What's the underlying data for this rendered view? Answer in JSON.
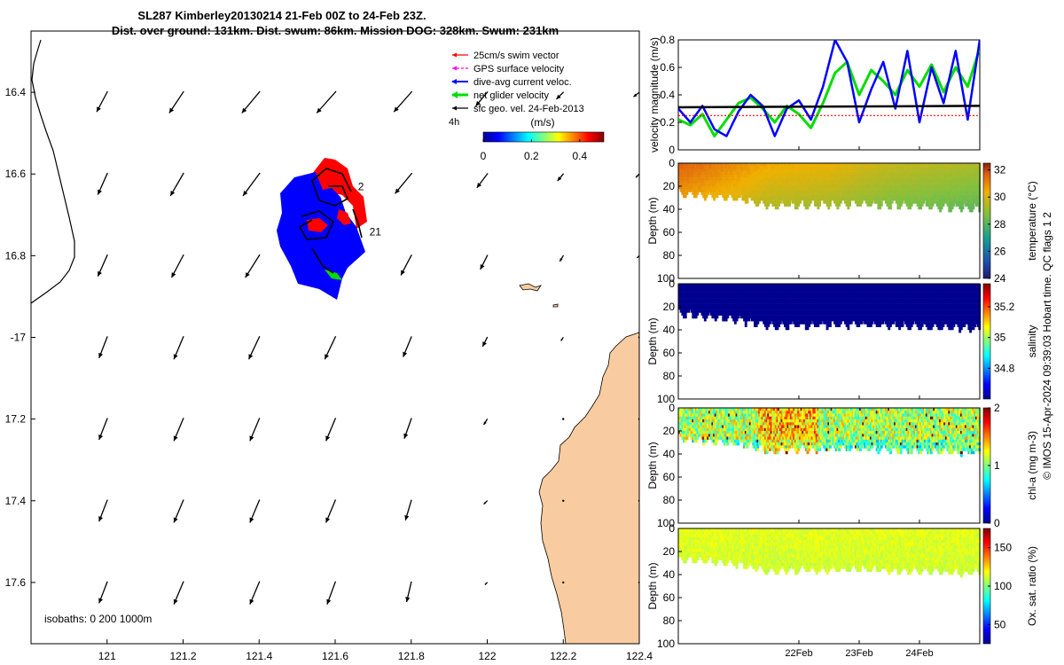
{
  "title": {
    "line1": "SL287 Kimberley20130214 21-Feb 00Z to 24-Feb 23Z.",
    "line2": "Dist. over ground: 131km. Dist. swum: 86km. Mission DOG: 328km. Swum: 231km"
  },
  "credit": "© IMOS 15-Apr-2024 09:39:03 Hobart time. QC flags 1  2",
  "colors": {
    "swim": "#ff0000",
    "gps": "#ff00ff",
    "dive": "#0000ff",
    "net": "#00dd00",
    "sfc": "#000000",
    "land": "#f8cca0",
    "track_red": "#ff0000",
    "track_blue": "#0000ff"
  },
  "chart_data": [
    {
      "type": "map",
      "name": "track-map",
      "xlim": [
        120.8,
        122.4
      ],
      "ylim": [
        -17.75,
        -16.25
      ],
      "xticks": [
        121,
        121.2,
        121.4,
        121.6,
        121.8,
        122,
        122.2,
        122.4
      ],
      "xtick_labels": [
        "121",
        "121.2",
        "121.4",
        "121.6",
        "121.8",
        "122",
        "122.2",
        "122.4"
      ],
      "yticks": [
        -16.4,
        -16.6,
        -16.8,
        -17.0,
        -17.2,
        -17.4,
        -17.6
      ],
      "ytick_labels": [
        "16.4",
        "16.6",
        "16.8",
        "-17",
        "17.2",
        "17.4",
        "17.6"
      ],
      "legend": {
        "placement": "top-right",
        "entries": [
          "25cm/s swim vector",
          "GPS surface velocity",
          "dive-avg current veloc.",
          "net glider velocity",
          "sfc geo. vel. 24-Feb-2013"
        ],
        "scale_label": "4h"
      },
      "colorbar": {
        "label": "(m/s)",
        "range": [
          0,
          0.5
        ],
        "ticks": [
          0,
          0.2,
          0.4
        ],
        "tick_labels": [
          "0",
          "0.2",
          "0.4"
        ]
      },
      "isobaths_label": "isobaths: 0   200  1000m",
      "annotations": [
        {
          "text": "2",
          "lon": 121.66,
          "lat": -16.64
        },
        {
          "text": "21",
          "lon": 121.69,
          "lat": -16.75
        }
      ],
      "vector_field": {
        "lons": [
          121.0,
          121.2,
          121.4,
          121.6,
          121.8,
          122.0,
          122.2,
          122.4
        ],
        "lats": [
          -16.4,
          -16.6,
          -16.8,
          -17.0,
          -17.2,
          -17.4,
          -17.6
        ],
        "u": [
          [
            -0.09,
            -0.12,
            -0.15,
            -0.16,
            -0.15,
            -0.1,
            -0.06,
            -0.05
          ],
          [
            -0.08,
            -0.11,
            -0.14,
            -0.15,
            -0.14,
            -0.09,
            -0.05,
            -0.03
          ],
          [
            -0.08,
            -0.1,
            -0.12,
            -0.13,
            -0.09,
            -0.06,
            -0.03,
            -0.02
          ],
          [
            -0.07,
            -0.08,
            -0.09,
            -0.09,
            -0.07,
            -0.04,
            -0.02,
            0
          ],
          [
            -0.07,
            -0.08,
            -0.08,
            -0.08,
            -0.06,
            -0.03,
            0,
            0
          ],
          [
            -0.07,
            -0.08,
            -0.08,
            -0.08,
            -0.05,
            -0.03,
            0,
            0
          ],
          [
            -0.07,
            -0.08,
            -0.08,
            -0.07,
            -0.04,
            -0.02,
            0,
            0
          ]
        ],
        "v": [
          [
            -0.17,
            -0.18,
            -0.18,
            -0.18,
            -0.17,
            -0.12,
            -0.06,
            -0.04
          ],
          [
            -0.18,
            -0.19,
            -0.19,
            -0.19,
            -0.17,
            -0.12,
            -0.06,
            -0.03
          ],
          [
            -0.18,
            -0.19,
            -0.19,
            -0.19,
            -0.17,
            -0.12,
            -0.05,
            -0.02
          ],
          [
            -0.18,
            -0.19,
            -0.19,
            -0.19,
            -0.17,
            -0.08,
            -0.03,
            0
          ],
          [
            -0.18,
            -0.19,
            -0.19,
            -0.19,
            -0.17,
            -0.05,
            0,
            0
          ],
          [
            -0.18,
            -0.19,
            -0.19,
            -0.19,
            -0.17,
            -0.03,
            0,
            0
          ],
          [
            -0.18,
            -0.19,
            -0.19,
            -0.19,
            -0.17,
            -0.02,
            0,
            0
          ]
        ]
      }
    },
    {
      "type": "line",
      "name": "velocity-magnitude",
      "ylabel": "velocity magnitude (m/s)",
      "xlim": [
        20.0,
        25.0
      ],
      "ylim": [
        0,
        0.8
      ],
      "yticks": [
        0,
        0.2,
        0.4,
        0.6,
        0.8
      ],
      "ytick_labels": [
        "0",
        "0.2",
        "0.4",
        "0.6",
        "0.8"
      ],
      "series": [
        {
          "name": "dive-avg current veloc.",
          "x": [
            20.0,
            20.2,
            20.4,
            20.6,
            20.8,
            21.0,
            21.2,
            21.4,
            21.6,
            21.8,
            22.0,
            22.2,
            22.4,
            22.6,
            22.8,
            23.0,
            23.2,
            23.4,
            23.6,
            23.8,
            24.0,
            24.2,
            24.4,
            24.6,
            24.8,
            25.0
          ],
          "y": [
            0.3,
            0.2,
            0.32,
            0.15,
            0.1,
            0.28,
            0.4,
            0.32,
            0.1,
            0.3,
            0.36,
            0.22,
            0.46,
            0.8,
            0.64,
            0.2,
            0.44,
            0.64,
            0.3,
            0.72,
            0.2,
            0.6,
            0.34,
            0.72,
            0.22,
            0.8
          ]
        },
        {
          "name": "net glider velocity",
          "x": [
            20.0,
            20.2,
            20.4,
            20.6,
            20.8,
            21.0,
            21.2,
            21.4,
            21.6,
            21.8,
            22.0,
            22.2,
            22.4,
            22.6,
            22.8,
            23.0,
            23.2,
            23.4,
            23.6,
            23.8,
            24.0,
            24.2,
            24.4,
            24.6,
            24.8,
            25.0
          ],
          "y": [
            0.22,
            0.18,
            0.26,
            0.1,
            0.22,
            0.34,
            0.38,
            0.3,
            0.2,
            0.32,
            0.26,
            0.16,
            0.34,
            0.56,
            0.64,
            0.4,
            0.58,
            0.5,
            0.4,
            0.58,
            0.46,
            0.62,
            0.42,
            0.6,
            0.46,
            0.74
          ]
        },
        {
          "name": "sfc geo. vel.",
          "x": [
            20.0,
            25.0
          ],
          "y": [
            0.31,
            0.32
          ]
        },
        {
          "name": "25cm/s swim vector",
          "x": [
            20.0,
            25.0
          ],
          "y": [
            0.25,
            0.25
          ]
        }
      ]
    },
    {
      "type": "heatmap",
      "name": "temperature",
      "ylabel": "Depth (m)",
      "ylim": [
        100,
        0
      ],
      "yticks": [
        0,
        20,
        40,
        60,
        80,
        100
      ],
      "ytick_labels": [
        "0",
        "20",
        "40",
        "60",
        "80",
        "100"
      ],
      "colorbar": {
        "label": "temperature (°C)",
        "range": [
          24,
          32.5
        ],
        "ticks": [
          24,
          26,
          28,
          30,
          32
        ],
        "tick_labels": [
          "24",
          "26",
          "28",
          "30",
          "32"
        ]
      },
      "depth_max_by_day": {
        "x": [
          20.0,
          21.0,
          21.5,
          22.0,
          23.0,
          24.0,
          25.0
        ],
        "depth": [
          25,
          30,
          36,
          35,
          34,
          36,
          38
        ]
      },
      "surface_to_value": {
        "x": [
          20.0,
          20.6,
          21.5,
          22.5,
          23.5,
          25.0
        ],
        "value": [
          31.6,
          31.2,
          30.5,
          30.3,
          29.7,
          29.3
        ]
      }
    },
    {
      "type": "heatmap",
      "name": "salinity",
      "ylabel": "Depth (m)",
      "ylim": [
        100,
        0
      ],
      "yticks": [
        0,
        20,
        40,
        60,
        80,
        100
      ],
      "ytick_labels": [
        "0",
        "20",
        "40",
        "60",
        "80",
        "100"
      ],
      "colorbar": {
        "label": "salinity",
        "range": [
          34.6,
          35.35
        ],
        "ticks": [
          34.8,
          35,
          35.2
        ],
        "tick_labels": [
          "34.8",
          "35",
          "35.2"
        ]
      },
      "uniform_value": 34.55
    },
    {
      "type": "heatmap",
      "name": "chl-a",
      "ylabel": "Depth (m)",
      "ylim": [
        100,
        0
      ],
      "yticks": [
        0,
        20,
        40,
        60,
        80,
        100
      ],
      "ytick_labels": [
        "0",
        "20",
        "40",
        "60",
        "80",
        "100"
      ],
      "colorbar": {
        "label": "chl-a (mg m-3)",
        "range": [
          0,
          2
        ],
        "ticks": [
          0,
          1,
          2
        ],
        "tick_labels": [
          "0",
          "1",
          "2"
        ]
      },
      "typical_value": 1.1
    },
    {
      "type": "heatmap",
      "name": "oxygen-saturation",
      "ylabel": "Depth (m)",
      "ylim": [
        100,
        0
      ],
      "yticks": [
        0,
        20,
        40,
        60,
        80,
        100
      ],
      "ytick_labels": [
        "0",
        "20",
        "40",
        "60",
        "80",
        "100"
      ],
      "colorbar": {
        "label": "Ox. sat. ratio (%)",
        "range": [
          25,
          175
        ],
        "ticks": [
          50,
          100,
          150
        ],
        "tick_labels": [
          "50",
          "100",
          "150"
        ]
      },
      "typical_value": 115
    }
  ],
  "time_axis": {
    "ticks": [
      22,
      23,
      24
    ],
    "tick_labels": [
      "22Feb",
      "23Feb",
      "24Feb"
    ]
  }
}
